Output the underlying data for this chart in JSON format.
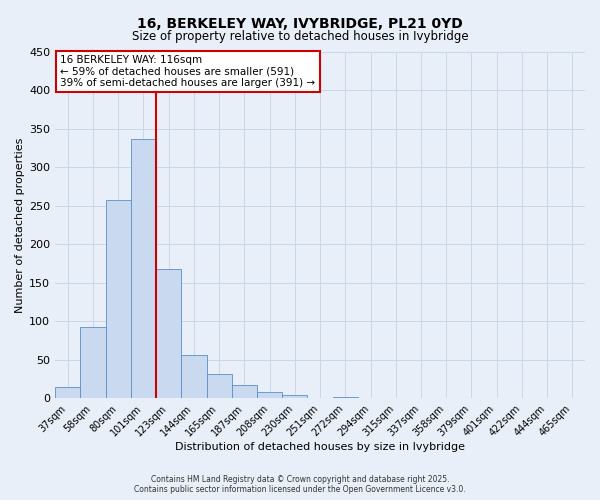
{
  "title": "16, BERKELEY WAY, IVYBRIDGE, PL21 0YD",
  "subtitle": "Size of property relative to detached houses in Ivybridge",
  "xlabel": "Distribution of detached houses by size in Ivybridge",
  "ylabel": "Number of detached properties",
  "bar_labels": [
    "37sqm",
    "58sqm",
    "80sqm",
    "101sqm",
    "123sqm",
    "144sqm",
    "165sqm",
    "187sqm",
    "208sqm",
    "230sqm",
    "251sqm",
    "272sqm",
    "294sqm",
    "315sqm",
    "337sqm",
    "358sqm",
    "379sqm",
    "401sqm",
    "422sqm",
    "444sqm",
    "465sqm"
  ],
  "bar_values": [
    15,
    93,
    257,
    337,
    168,
    57,
    32,
    18,
    9,
    4,
    0,
    2,
    0,
    0,
    1,
    0,
    0,
    0,
    0,
    0,
    1
  ],
  "bar_color": "#c9d9f0",
  "bar_edge_color": "#5a8fc5",
  "vline_pos": 3.5,
  "vline_color": "#cc0000",
  "ylim": [
    0,
    450
  ],
  "yticks": [
    0,
    50,
    100,
    150,
    200,
    250,
    300,
    350,
    400,
    450
  ],
  "annotation_line1": "16 BERKELEY WAY: 116sqm",
  "annotation_line2": "← 59% of detached houses are smaller (591)",
  "annotation_line3": "39% of semi-detached houses are larger (391) →",
  "annotation_box_facecolor": "#ffffff",
  "annotation_border_color": "#cc0000",
  "grid_color": "#c8d8e8",
  "bg_color": "#e8eff8",
  "footnote1": "Contains HM Land Registry data © Crown copyright and database right 2025.",
  "footnote2": "Contains public sector information licensed under the Open Government Licence v3.0."
}
